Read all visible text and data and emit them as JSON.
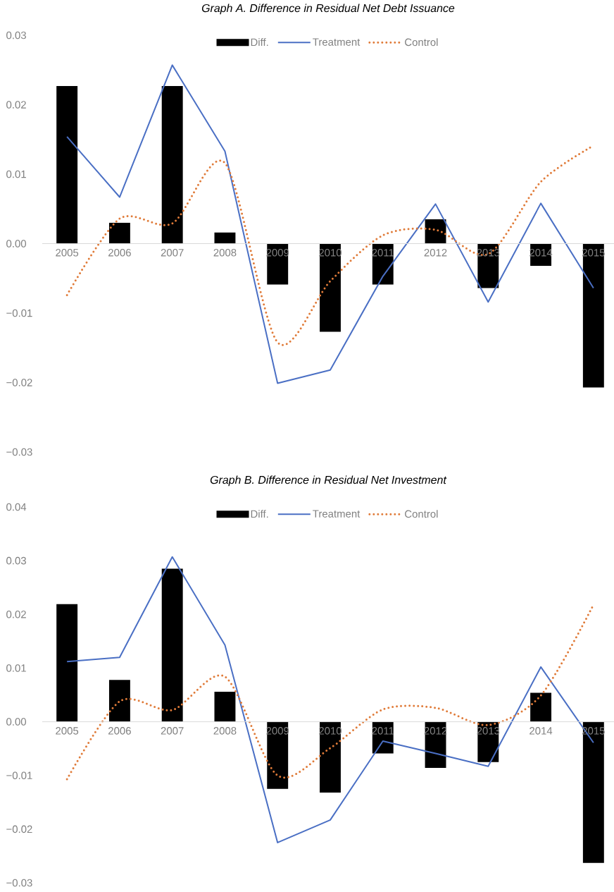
{
  "chart_data": [
    {
      "type": "bar",
      "title": "Graph A. Difference in Residual Net Debt Issuance",
      "categories": [
        "2005",
        "2006",
        "2007",
        "2008",
        "2009",
        "2010",
        "2011",
        "2012",
        "2013",
        "2014",
        "2015"
      ],
      "series": [
        {
          "name": "Diff.",
          "color": "#000000",
          "values": [
            0.0227,
            0.003,
            0.0227,
            0.0016,
            -0.0059,
            -0.0127,
            -0.0059,
            0.0035,
            -0.0064,
            -0.0032,
            -0.0207
          ]
        },
        {
          "name": "Treatment",
          "type": "line",
          "line_style": "solid",
          "color": "#4a6fc4",
          "values": [
            0.0154,
            0.0067,
            0.0257,
            0.0133,
            -0.0201,
            -0.0182,
            -0.0047,
            0.0057,
            -0.0084,
            0.0058,
            -0.0064
          ]
        },
        {
          "name": "Control",
          "type": "line",
          "line_style": "dotted",
          "color": "#e07b39",
          "values": [
            -0.0074,
            0.0036,
            0.0029,
            0.0116,
            -0.0142,
            -0.0054,
            0.0012,
            0.002,
            -0.0015,
            0.0089,
            0.0141
          ]
        }
      ],
      "ylim": [
        -0.03,
        0.03
      ],
      "yticks": [
        {
          "value": 0.03,
          "label": "0.03"
        },
        {
          "value": 0.02,
          "label": "0.02"
        },
        {
          "value": 0.01,
          "label": "0.01"
        },
        {
          "value": 0,
          "label": "0.00"
        },
        {
          "value": -0.01,
          "label": "−0.01"
        },
        {
          "value": -0.02,
          "label": "−0.02"
        },
        {
          "value": -0.03,
          "label": "−0.03"
        }
      ],
      "legend": "top"
    },
    {
      "type": "bar",
      "title": "Graph B. Difference in Residual Net Investment",
      "categories": [
        "2005",
        "2006",
        "2007",
        "2008",
        "2009",
        "2010",
        "2011",
        "2012",
        "2013",
        "2014",
        "2015"
      ],
      "series": [
        {
          "name": "Diff.",
          "color": "#000000",
          "values": [
            0.0219,
            0.0078,
            0.0285,
            0.0056,
            -0.0125,
            -0.0132,
            -0.0059,
            -0.0086,
            -0.0075,
            0.0054,
            -0.0263
          ]
        },
        {
          "name": "Treatment",
          "type": "line",
          "line_style": "solid",
          "color": "#4a6fc4",
          "values": [
            0.0112,
            0.012,
            0.0307,
            0.0143,
            -0.0225,
            -0.0183,
            -0.0036,
            -0.0059,
            -0.0083,
            0.0102,
            -0.0039
          ]
        },
        {
          "name": "Control",
          "type": "line",
          "line_style": "dotted",
          "color": "#e07b39",
          "values": [
            -0.0107,
            0.0038,
            0.0022,
            0.0084,
            -0.01,
            -0.0049,
            0.0023,
            0.0026,
            -0.0006,
            0.0049,
            0.0218
          ]
        }
      ],
      "ylim": [
        -0.03,
        0.04
      ],
      "yticks": [
        {
          "value": 0.04,
          "label": "0.04"
        },
        {
          "value": 0.03,
          "label": "0.03"
        },
        {
          "value": 0.02,
          "label": "0.02"
        },
        {
          "value": 0.01,
          "label": "0.01"
        },
        {
          "value": 0,
          "label": "0.00"
        },
        {
          "value": -0.01,
          "label": "−0.01"
        },
        {
          "value": -0.02,
          "label": "−0.02"
        },
        {
          "value": -0.03,
          "label": "−0.03"
        }
      ],
      "legend": "top"
    }
  ]
}
